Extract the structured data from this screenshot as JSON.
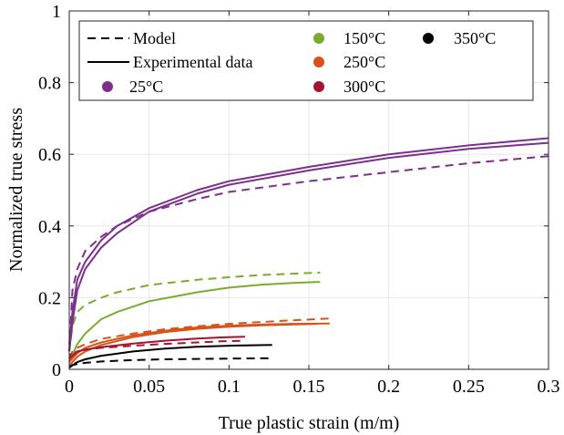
{
  "chart_data": {
    "type": "line",
    "title": "",
    "xlabel": "True plastic strain (m/m)",
    "ylabel": "Normalized true stress",
    "xlim": [
      0,
      0.3
    ],
    "ylim": [
      0,
      1
    ],
    "xticks": [
      0,
      0.05,
      0.1,
      0.15,
      0.2,
      0.25,
      0.3
    ],
    "xtick_labels": [
      "0",
      "0.05",
      "0.1",
      "0.15",
      "0.2",
      "0.25",
      "0.3"
    ],
    "yticks": [
      0,
      0.2,
      0.4,
      0.6,
      0.8,
      1
    ],
    "ytick_labels": [
      "0",
      "0.2",
      "0.4",
      "0.6",
      "0.8",
      "1"
    ],
    "grid": true,
    "legend_placement": "top",
    "legend": {
      "style_entries": [
        {
          "label": "Model",
          "style": "dashed"
        },
        {
          "label": "Experimental data",
          "style": "solid"
        }
      ],
      "temperature_entries": [
        {
          "label": "25°C",
          "color": "#7e2f8e"
        },
        {
          "label": "150°C",
          "color": "#77ac30"
        },
        {
          "label": "250°C",
          "color": "#d95319"
        },
        {
          "label": "300°C",
          "color": "#a2142f"
        },
        {
          "label": "350°C",
          "color": "#000000"
        }
      ]
    },
    "series": [
      {
        "temperature": "25°C",
        "kind": "experimental",
        "color": "#7e2f8e",
        "x": [
          0,
          0.002,
          0.005,
          0.01,
          0.02,
          0.03,
          0.05,
          0.08,
          0.1,
          0.15,
          0.2,
          0.25,
          0.3
        ],
        "y": [
          0.07,
          0.16,
          0.25,
          0.3,
          0.36,
          0.4,
          0.45,
          0.5,
          0.525,
          0.565,
          0.6,
          0.625,
          0.645
        ]
      },
      {
        "temperature": "25°C",
        "kind": "experimental",
        "color": "#7e2f8e",
        "x": [
          0,
          0.002,
          0.005,
          0.01,
          0.02,
          0.03,
          0.05,
          0.08,
          0.1,
          0.15,
          0.2,
          0.25,
          0.3
        ],
        "y": [
          0.05,
          0.13,
          0.22,
          0.28,
          0.34,
          0.38,
          0.44,
          0.49,
          0.515,
          0.555,
          0.59,
          0.615,
          0.632
        ]
      },
      {
        "temperature": "25°C",
        "kind": "model",
        "color": "#7e2f8e",
        "x": [
          0,
          0.002,
          0.005,
          0.01,
          0.02,
          0.03,
          0.05,
          0.08,
          0.1,
          0.15,
          0.2,
          0.25,
          0.3
        ],
        "y": [
          0.05,
          0.22,
          0.28,
          0.33,
          0.37,
          0.4,
          0.44,
          0.475,
          0.495,
          0.525,
          0.55,
          0.575,
          0.595
        ]
      },
      {
        "temperature": "150°C",
        "kind": "experimental",
        "color": "#77ac30",
        "x": [
          0,
          0.005,
          0.01,
          0.02,
          0.03,
          0.05,
          0.08,
          0.1,
          0.12,
          0.14,
          0.157
        ],
        "y": [
          0.02,
          0.07,
          0.1,
          0.14,
          0.16,
          0.19,
          0.215,
          0.228,
          0.236,
          0.241,
          0.244
        ]
      },
      {
        "temperature": "150°C",
        "kind": "model",
        "color": "#77ac30",
        "x": [
          0,
          0.002,
          0.005,
          0.01,
          0.02,
          0.03,
          0.05,
          0.08,
          0.1,
          0.12,
          0.14,
          0.157
        ],
        "y": [
          0.05,
          0.12,
          0.16,
          0.18,
          0.2,
          0.215,
          0.235,
          0.25,
          0.257,
          0.263,
          0.267,
          0.27
        ]
      },
      {
        "temperature": "250°C",
        "kind": "experimental",
        "color": "#d95319",
        "x": [
          0,
          0.005,
          0.01,
          0.02,
          0.04,
          0.06,
          0.08,
          0.1,
          0.12,
          0.14,
          0.163
        ],
        "y": [
          0.02,
          0.045,
          0.06,
          0.075,
          0.095,
          0.108,
          0.117,
          0.122,
          0.125,
          0.127,
          0.128
        ]
      },
      {
        "temperature": "250°C",
        "kind": "experimental",
        "color": "#d95319",
        "x": [
          0,
          0.005,
          0.01,
          0.02,
          0.04,
          0.06,
          0.08,
          0.1,
          0.12,
          0.155
        ],
        "y": [
          0.01,
          0.035,
          0.05,
          0.068,
          0.09,
          0.104,
          0.113,
          0.119,
          0.123,
          0.127
        ]
      },
      {
        "temperature": "250°C",
        "kind": "model",
        "color": "#d95319",
        "x": [
          0,
          0.002,
          0.005,
          0.01,
          0.02,
          0.04,
          0.06,
          0.08,
          0.1,
          0.12,
          0.14,
          0.163
        ],
        "y": [
          0.03,
          0.05,
          0.06,
          0.07,
          0.085,
          0.1,
          0.112,
          0.12,
          0.127,
          0.132,
          0.137,
          0.142
        ]
      },
      {
        "temperature": "300°C",
        "kind": "experimental",
        "color": "#a2142f",
        "x": [
          0,
          0.005,
          0.01,
          0.02,
          0.04,
          0.06,
          0.08,
          0.095,
          0.11
        ],
        "y": [
          0.03,
          0.05,
          0.055,
          0.062,
          0.072,
          0.08,
          0.086,
          0.089,
          0.091
        ]
      },
      {
        "temperature": "300°C",
        "kind": "model",
        "color": "#a2142f",
        "x": [
          0,
          0.005,
          0.01,
          0.02,
          0.04,
          0.06,
          0.08,
          0.095,
          0.11
        ],
        "y": [
          0.04,
          0.05,
          0.055,
          0.06,
          0.066,
          0.071,
          0.075,
          0.078,
          0.08
        ]
      },
      {
        "temperature": "350°C",
        "kind": "experimental",
        "color": "#000000",
        "x": [
          0,
          0.005,
          0.01,
          0.02,
          0.04,
          0.06,
          0.08,
          0.1,
          0.127
        ],
        "y": [
          0.005,
          0.02,
          0.028,
          0.038,
          0.05,
          0.058,
          0.063,
          0.066,
          0.068
        ]
      },
      {
        "temperature": "350°C",
        "kind": "model",
        "color": "#000000",
        "x": [
          0,
          0.005,
          0.01,
          0.02,
          0.04,
          0.06,
          0.08,
          0.1,
          0.127
        ],
        "y": [
          0.01,
          0.015,
          0.018,
          0.022,
          0.026,
          0.028,
          0.029,
          0.03,
          0.031
        ]
      }
    ]
  }
}
